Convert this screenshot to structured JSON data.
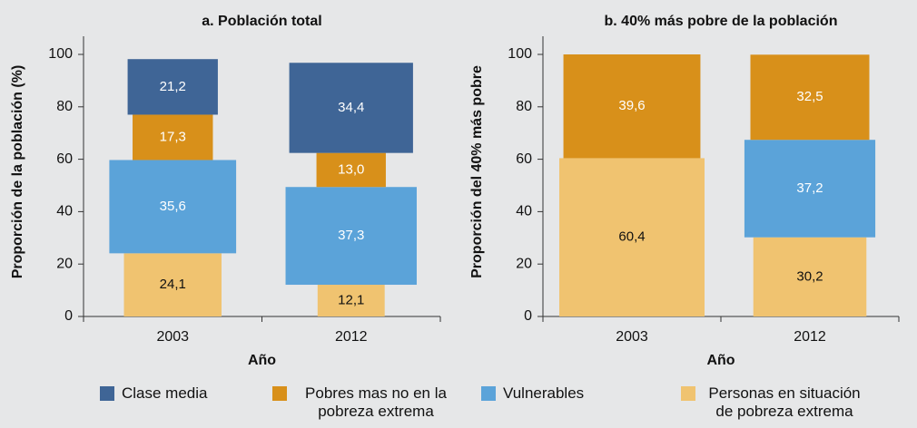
{
  "chart_data": [
    {
      "type": "bar",
      "stacked": true,
      "title": "a. Población total",
      "x_label": "Año",
      "y_label": "Proporción de la población (%)",
      "categories": [
        "2003",
        "2012"
      ],
      "ylim": [
        0,
        100
      ],
      "yticks": [
        0,
        20,
        40,
        60,
        80,
        100
      ],
      "series": [
        {
          "name": "Clase media",
          "color": "#3f6596",
          "values": [
            21.2,
            34.4
          ],
          "value_labels": [
            "21,2",
            "34,4"
          ]
        },
        {
          "name": "Pobres mas no en la pobreza extrema",
          "color": "#d8901a",
          "values": [
            17.3,
            13.0
          ],
          "value_labels": [
            "17,3",
            "13,0"
          ]
        },
        {
          "name": "Vulnerables",
          "color": "#5ba3d9",
          "values": [
            35.6,
            37.3
          ],
          "value_labels": [
            "35,6",
            "37,3"
          ]
        },
        {
          "name": "Personas en situación de pobreza extrema",
          "color": "#f0c370",
          "values": [
            24.1,
            12.1
          ],
          "value_labels": [
            "24,1",
            "12,1"
          ]
        }
      ]
    },
    {
      "type": "bar",
      "stacked": true,
      "title": "b. 40% más pobre de la población",
      "x_label": "Año",
      "y_label": "Proporción del 40% más pobre",
      "categories": [
        "2003",
        "2012"
      ],
      "ylim": [
        0,
        100
      ],
      "yticks": [
        0,
        20,
        40,
        60,
        80,
        100
      ],
      "series": [
        {
          "color": "#3f6596",
          "values": [
            null,
            null
          ]
        },
        {
          "color": "#d8901a",
          "values": [
            39.6,
            32.5
          ],
          "value_labels": [
            "39,6",
            "32,5"
          ]
        },
        {
          "color": "#5ba3d9",
          "values": [
            null,
            37.2
          ],
          "value_labels": [
            null,
            "37,2"
          ]
        },
        {
          "color": "#f0c370",
          "values": [
            60.4,
            30.2
          ],
          "value_labels": [
            "60,4",
            "30,2"
          ]
        }
      ]
    }
  ]
}
